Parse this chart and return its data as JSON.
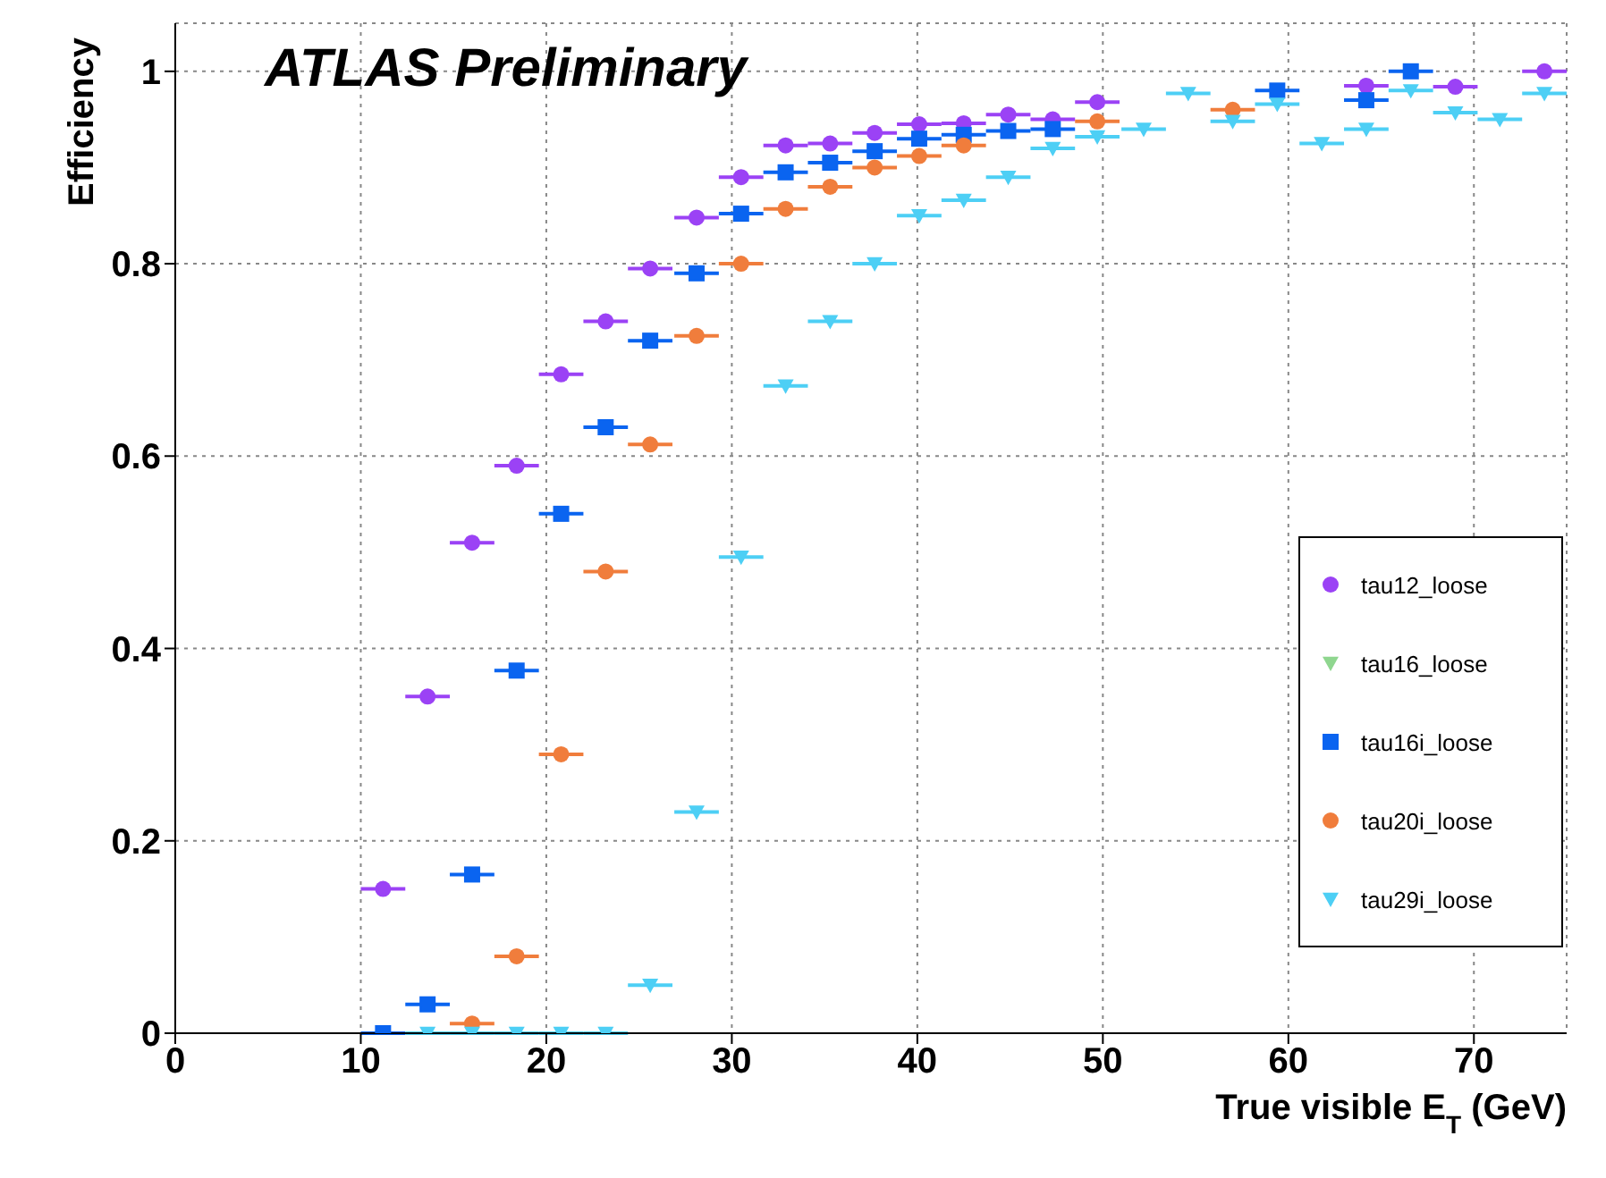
{
  "chart_data": {
    "type": "scatter",
    "xlabel": "True visible E$_{T}$ (GeV)",
    "ylabel": "Efficiency",
    "annotations": [
      "ATLAS Preliminary"
    ],
    "x": [
      11.2,
      13.6,
      16.0,
      18.4,
      20.8,
      23.2,
      25.6,
      28.1,
      30.5,
      32.9,
      35.3,
      37.7,
      40.1,
      42.5,
      44.9,
      47.3,
      49.7,
      52.2,
      54.6,
      57.0,
      59.4,
      61.8,
      64.2,
      66.6,
      69.0,
      71.4,
      73.8
    ],
    "xlim": [
      0,
      75
    ],
    "xticks": [
      0,
      10,
      20,
      30,
      40,
      50,
      60,
      70
    ],
    "ylim": [
      0,
      1.05
    ],
    "yticks": [
      0,
      0.2,
      0.4,
      0.6,
      0.8,
      1
    ],
    "grid": true,
    "legend": "right",
    "series": [
      {
        "name": "tau12_loose",
        "color": "#9b42f5",
        "marker": "circle",
        "values": [
          0.15,
          0.35,
          0.51,
          0.59,
          0.685,
          0.74,
          0.795,
          0.848,
          0.89,
          0.923,
          0.925,
          0.936,
          0.945,
          0.946,
          0.955,
          0.95,
          0.968,
          null,
          null,
          null,
          null,
          null,
          0.985,
          null,
          0.984,
          null,
          1.0
        ],
        "xerrors": [
          1.2,
          1.2,
          1.2,
          1.2,
          1.2,
          1.2,
          1.2,
          1.2,
          1.2,
          1.2,
          1.2,
          1.2,
          1.2,
          1.2,
          1.2,
          1.2,
          1.2,
          null,
          null,
          null,
          null,
          null,
          1.2,
          null,
          1.2,
          null,
          1.2
        ]
      },
      {
        "name": "tau16_loose",
        "color": "#8fd68f",
        "marker": "triangle",
        "values": [
          null,
          null,
          null,
          null,
          null,
          null,
          null,
          null,
          null,
          null,
          null,
          null,
          null,
          null,
          null,
          null,
          null,
          null,
          null,
          null,
          null,
          null,
          null,
          null,
          null,
          null,
          null
        ]
      },
      {
        "name": "tau16i_loose",
        "color": "#0a64f0",
        "marker": "square",
        "values": [
          0.0,
          0.03,
          0.165,
          0.377,
          0.54,
          0.63,
          0.72,
          0.79,
          0.852,
          0.895,
          0.905,
          0.917,
          0.93,
          0.934,
          0.938,
          0.94,
          null,
          null,
          null,
          null,
          0.98,
          null,
          0.97,
          1.0,
          null,
          null,
          null
        ],
        "xerrors": [
          1.2,
          1.2,
          1.2,
          1.2,
          1.2,
          1.2,
          1.2,
          1.2,
          1.2,
          1.2,
          1.2,
          1.2,
          1.2,
          1.2,
          1.2,
          1.2,
          null,
          null,
          null,
          null,
          1.2,
          null,
          1.2,
          1.2,
          null,
          null,
          null
        ]
      },
      {
        "name": "tau20i_loose",
        "color": "#f07d3c",
        "marker": "circle",
        "values": [
          null,
          null,
          0.01,
          0.08,
          0.29,
          0.48,
          0.612,
          0.725,
          0.8,
          0.857,
          0.88,
          0.9,
          0.912,
          0.923,
          null,
          null,
          0.948,
          null,
          null,
          0.96,
          null,
          null,
          null,
          null,
          null,
          null,
          null
        ],
        "xerrors": [
          null,
          null,
          1.2,
          1.2,
          1.2,
          1.2,
          1.2,
          1.2,
          1.2,
          1.2,
          1.2,
          1.2,
          1.2,
          1.2,
          null,
          null,
          1.2,
          null,
          null,
          1.2,
          null,
          null,
          null,
          null,
          null,
          null,
          null
        ]
      },
      {
        "name": "tau29i_loose",
        "color": "#4dcff5",
        "marker": "triangle",
        "values": [
          null,
          0,
          0,
          0,
          0,
          0,
          0.05,
          0.23,
          0.495,
          0.673,
          0.74,
          0.8,
          0.85,
          0.866,
          0.89,
          0.92,
          0.932,
          0.94,
          0.977,
          0.948,
          0.966,
          0.925,
          0.94,
          0.98,
          0.957,
          0.95,
          0.977
        ],
        "xerrors": [
          null,
          1.2,
          1.2,
          1.2,
          1.2,
          1.2,
          1.2,
          1.2,
          1.2,
          1.2,
          1.2,
          1.2,
          1.2,
          1.2,
          1.2,
          1.2,
          1.2,
          1.2,
          1.2,
          1.2,
          1.2,
          1.2,
          1.2,
          1.2,
          1.2,
          1.2,
          1.2
        ]
      }
    ]
  }
}
